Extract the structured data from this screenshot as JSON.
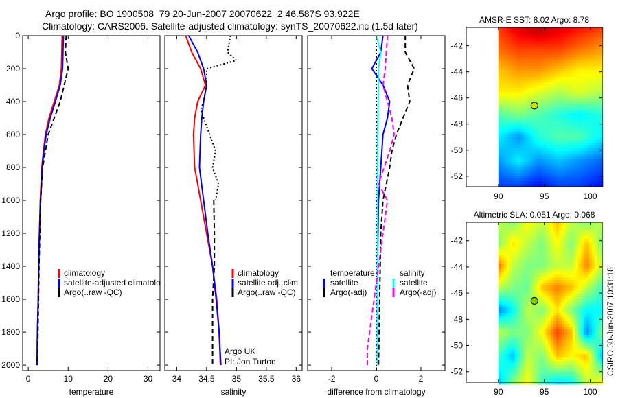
{
  "title": {
    "line1": "Argo profile: BO 1900508_79 20-Jun-2007 20070622_2 46.587S 93.922E",
    "line2": "Climatology: CARS2006. Satellite-adjusted climatology: synTS_20070622.nc (1.5d later)"
  },
  "side_label": "CSIRO 30-Jun-2007 10:31:18",
  "chart_data": [
    {
      "type": "line",
      "xlabel": "temperature",
      "ylabel": "",
      "xlim": [
        -1.4,
        33
      ],
      "ylim": [
        0,
        2033
      ],
      "xticks": [
        0,
        10,
        20,
        30
      ],
      "yticks": [
        0,
        200,
        400,
        600,
        800,
        1000,
        1200,
        1400,
        1600,
        1800,
        2000
      ],
      "legend": [
        "climatology",
        "satellite-adjusted climatology",
        "Argo(..raw -QC)"
      ],
      "series": [
        {
          "name": "climatology",
          "color": "#ff0000",
          "style": "solid",
          "depth": [
            0,
            100,
            200,
            300,
            400,
            500,
            600,
            700,
            800,
            1000,
            1200,
            1400,
            1600,
            1800,
            2000
          ],
          "values": [
            8.5,
            8.4,
            8.3,
            7.8,
            6.5,
            5.2,
            4.3,
            3.8,
            3.4,
            3.0,
            2.8,
            2.6,
            2.5,
            2.3,
            2.2
          ]
        },
        {
          "name": "satellite-adjusted climatology",
          "color": "#0000ff",
          "style": "solid",
          "depth": [
            0,
            100,
            200,
            300,
            400,
            500,
            600,
            700,
            800,
            1000,
            1200,
            1400,
            1600,
            1800,
            2000
          ],
          "values": [
            8.8,
            8.7,
            8.6,
            8.0,
            6.8,
            5.5,
            4.5,
            3.9,
            3.5,
            3.1,
            2.8,
            2.6,
            2.5,
            2.3,
            2.2
          ]
        },
        {
          "name": "Argo(..raw -QC)",
          "color": "#000000",
          "style": "dashed",
          "depth": [
            0,
            100,
            200,
            300,
            400,
            500,
            600,
            800,
            1000,
            1400,
            2000
          ],
          "values": [
            9.5,
            9.3,
            10.0,
            9.0,
            8.0,
            6.5,
            5.0,
            3.6,
            3.1,
            2.7,
            2.3
          ]
        }
      ]
    },
    {
      "type": "line",
      "xlabel": "salinity",
      "xlim": [
        33.8,
        36.1
      ],
      "ylim": [
        0,
        2033
      ],
      "xticks": [
        34,
        34.5,
        35,
        35.5,
        36
      ],
      "yticks": [
        0,
        200,
        400,
        600,
        800,
        1000,
        1200,
        1400,
        1600,
        1800,
        2000
      ],
      "legend": [
        "climatology",
        "satellite adj. clim.",
        "Argo(..raw -QC)"
      ],
      "annotations": [
        "Argo UK",
        "PI: Jon Turton"
      ],
      "series": [
        {
          "name": "climatology",
          "color": "#ff0000",
          "style": "solid",
          "depth": [
            0,
            100,
            200,
            300,
            400,
            500,
            600,
            800,
            1000,
            1200,
            1400,
            1600,
            1800,
            2000
          ],
          "values": [
            34.15,
            34.25,
            34.4,
            34.48,
            34.35,
            34.3,
            34.28,
            34.3,
            34.4,
            34.5,
            34.6,
            34.67,
            34.71,
            34.73
          ]
        },
        {
          "name": "satellite adj. clim.",
          "color": "#0000ff",
          "style": "solid",
          "depth": [
            0,
            100,
            200,
            300,
            400,
            500,
            600,
            800,
            1000,
            1200,
            1400,
            1600,
            1800,
            2000
          ],
          "values": [
            34.2,
            34.35,
            34.45,
            34.5,
            34.45,
            34.42,
            34.4,
            34.38,
            34.45,
            34.52,
            34.6,
            34.66,
            34.71,
            34.74
          ]
        },
        {
          "name": "Argo(..raw -QC)",
          "color": "#000000",
          "style": "dotted",
          "depth": [
            0,
            100,
            150,
            200,
            300,
            400,
            450,
            600,
            700,
            800,
            900,
            1000
          ],
          "values": [
            34.9,
            34.85,
            35.0,
            34.5,
            34.5,
            34.45,
            34.4,
            34.55,
            34.65,
            34.6,
            34.7,
            34.65
          ]
        },
        {
          "name": "Argo(..raw -QC) deep",
          "color": "#000000",
          "style": "dashed",
          "depth": [
            1000,
            1200,
            1400,
            1600,
            1800,
            2000
          ],
          "values": [
            34.62,
            34.63,
            34.63,
            34.6,
            34.6,
            34.6
          ]
        }
      ]
    },
    {
      "type": "line",
      "xlabel": "difference from climatology",
      "xlim": [
        -3.08,
        3.08
      ],
      "ylim": [
        0,
        2033
      ],
      "xticks": [
        -2,
        0,
        2
      ],
      "yticks": [
        0,
        200,
        400,
        600,
        800,
        1000,
        1200,
        1400,
        1600,
        1800,
        2000
      ],
      "legend_temperature_title": "temperature",
      "legend_salinity_title": "salinity",
      "legend": [
        "satellite",
        "Argo(-adj)",
        "satellite",
        "Argo(-adj)"
      ],
      "series": [
        {
          "name": "zero",
          "color": "#000000",
          "style": "dotted",
          "depth": [
            0,
            2033
          ],
          "values": [
            0,
            0
          ]
        },
        {
          "name": "temperature satellite",
          "color": "#0000ff",
          "style": "solid",
          "depth": [
            0,
            100,
            200,
            300,
            400,
            500,
            600,
            800,
            1000,
            1400,
            2000
          ],
          "values": [
            0.3,
            0.2,
            -0.2,
            0.3,
            0.6,
            0.5,
            0.3,
            0.2,
            0.1,
            0.05,
            0.05
          ]
        },
        {
          "name": "salinity satellite",
          "color": "#00ffff",
          "style": "solid",
          "depth": [
            0,
            100,
            200,
            300,
            600,
            1000,
            2000
          ],
          "values": [
            0,
            0.2,
            0.1,
            0.1,
            0.05,
            0.05,
            0.05
          ]
        },
        {
          "name": "temperature Argo(-adj)",
          "color": "#000000",
          "style": "dashed",
          "depth": [
            0,
            100,
            200,
            300,
            400,
            500,
            600,
            700,
            800,
            1000,
            1200,
            1600,
            2000
          ],
          "values": [
            1.3,
            1.3,
            1.7,
            1.4,
            1.5,
            1.2,
            0.9,
            0.7,
            0.6,
            0.3,
            0.2,
            0.15,
            0.1
          ]
        },
        {
          "name": "salinity Argo(-adj)",
          "color": "#ff00ff",
          "style": "dashed",
          "depth": [
            0,
            200,
            300,
            400,
            500,
            600,
            700,
            900,
            1000,
            1200,
            1500,
            1700,
            1900,
            2000
          ],
          "values": [
            0.5,
            0.4,
            0.3,
            0.5,
            0.7,
            0.8,
            0.6,
            0.1,
            0.5,
            0.3,
            0,
            -0.2,
            -0.4,
            -0.4
          ]
        }
      ]
    },
    {
      "type": "heatmap",
      "title": "AMSR-E SST: 8.02  Argo: 8.78",
      "xlim": [
        86.5,
        101.3
      ],
      "ylim": [
        -52.8,
        -40.6
      ],
      "xticks": [
        90,
        95,
        100
      ],
      "yticks": [
        -42,
        -44,
        -46,
        -48,
        -50,
        -52
      ],
      "lon": [
        90,
        92.2,
        94.4,
        96.6,
        98.8,
        101.3
      ],
      "lat": [
        -40.6,
        -42.2,
        -43.9,
        -45.6,
        -47.3,
        -49,
        -50.8,
        -52.8
      ],
      "values": [
        [
          11,
          12,
          12.5,
          12,
          11.5,
          11
        ],
        [
          10.5,
          11,
          11,
          11,
          10.5,
          10
        ],
        [
          9.5,
          10,
          10,
          9.5,
          9,
          9
        ],
        [
          9,
          9,
          8.5,
          8,
          8.5,
          8
        ],
        [
          7,
          7.5,
          7,
          6.5,
          6,
          6.5
        ],
        [
          6,
          5,
          6.5,
          7,
          7,
          6
        ],
        [
          5,
          6,
          5,
          5.5,
          5,
          4.5
        ],
        [
          4,
          4,
          3.5,
          4,
          4,
          3.5
        ]
      ],
      "clim": [
        2,
        13
      ],
      "argo_point": [
        93.922,
        -46.587
      ]
    },
    {
      "type": "heatmap",
      "title": "Altimetric SLA: 0.051  Argo: 0.068",
      "xlim": [
        86.5,
        101.3
      ],
      "ylim": [
        -52.8,
        -40.6
      ],
      "xticks": [
        90,
        95,
        100
      ],
      "yticks": [
        -42,
        -44,
        -46,
        -48,
        -50,
        -52
      ],
      "lon": [
        90,
        91.6,
        93.2,
        94.8,
        96.4,
        98,
        99.6,
        101.3
      ],
      "lat": [
        -40.6,
        -42.2,
        -43.9,
        -45.6,
        -47.3,
        -49,
        -50.8,
        -52.8
      ],
      "values": [
        [
          0.05,
          0.0,
          0.1,
          0.05,
          0.15,
          0.05,
          0.0,
          0.05
        ],
        [
          0.0,
          0.12,
          0.05,
          0.0,
          0.1,
          0.0,
          0.15,
          0.0
        ],
        [
          0.22,
          0.05,
          0.0,
          0.0,
          0.05,
          0.05,
          0.2,
          0.05
        ],
        [
          0.05,
          0.0,
          -0.02,
          0.15,
          0.2,
          0.15,
          0.05,
          -0.05
        ],
        [
          -0.2,
          -0.1,
          0.05,
          0.0,
          0.12,
          0.0,
          -0.1,
          -0.1
        ],
        [
          0.05,
          0.0,
          0.0,
          0.1,
          0.25,
          0.15,
          -0.2,
          0.0
        ],
        [
          -0.05,
          -0.15,
          0.05,
          0.0,
          0.15,
          0.1,
          0.15,
          -0.15
        ],
        [
          -0.15,
          0.0,
          0.1,
          -0.05,
          -0.12,
          -0.1,
          0.05,
          0.1
        ]
      ],
      "clim": [
        -0.4,
        0.4
      ],
      "argo_point": [
        93.922,
        -46.587
      ]
    }
  ]
}
